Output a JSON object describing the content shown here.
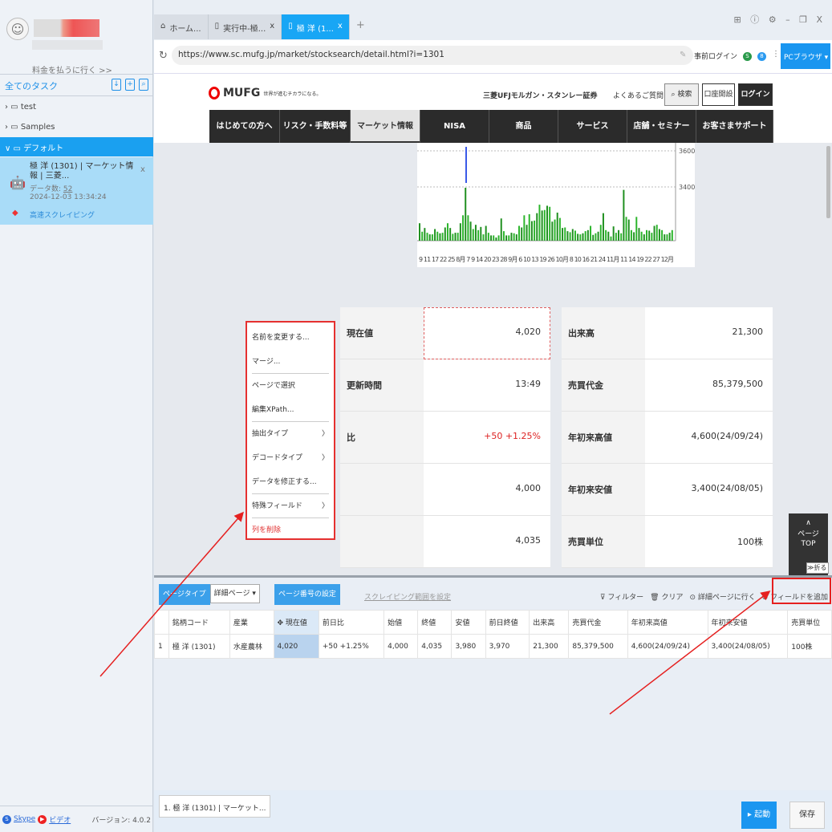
{
  "sidebar": {
    "pay_link": "料金を払うに行く >>",
    "tasks_title": "全てのタスク",
    "header_icons": [
      "import-icon",
      "add-task-icon",
      "search-task-icon"
    ],
    "folders": [
      {
        "label": "test"
      },
      {
        "label": "Samples"
      },
      {
        "label": "デフォルト"
      }
    ],
    "task": {
      "title": "極 洋 (1301) | マーケット情報 | 三菱...",
      "count_label": "データ数:",
      "count": "52",
      "datetime": "2024-12-03 13:34:24",
      "close": "x",
      "mode": "高速スクレイピング"
    },
    "footer": {
      "skype": "Skype",
      "video": "ビデオ",
      "version": "バージョン: 4.0.2"
    }
  },
  "tabs": [
    {
      "label": "ホーム..."
    },
    {
      "label": "実行中-極...",
      "close": "x"
    },
    {
      "label": "極 洋 (1...",
      "close": "x"
    }
  ],
  "tab_add": "+",
  "window_controls": "⊞ ⓘ ⚙ – ❐ X",
  "address": {
    "url": "https://www.sc.mufg.jp/market/stocksearch/detail.html?i=1301",
    "pre_login": "事前ログイン",
    "browser_mode": "PCブラウザ"
  },
  "site": {
    "logo": "MUFG",
    "tagline": "世界が進むチカラになる。",
    "company": "三菱UFJモルガン・スタンレー証券",
    "faq": "よくあるご質問",
    "search": "検索",
    "open_account": "口座開設",
    "login": "ログイン",
    "nav": [
      "はじめての方へ",
      "リスク・手数料等",
      "マーケット情報",
      "NISA",
      "商品",
      "サービス",
      "店舗・セミナー",
      "お客さまサポート"
    ],
    "chart": {
      "y_ticks": [
        "3600",
        "3400"
      ],
      "x_labels": "9 11 17 22 25   8月 7 9 14  20 23 28 9月 6 10 13 19  26 10月 8 10 16 21 24     11月 11 14 19 22 27 12月",
      "volume_relative": [
        0.33,
        0.17,
        0.24,
        0.15,
        0.12,
        0.12,
        0.22,
        0.17,
        0.14,
        0.15,
        0.25,
        0.33,
        0.24,
        0.13,
        0.15,
        0.15,
        0.33,
        0.48,
        1.0,
        0.48,
        0.36,
        0.22,
        0.3,
        0.2,
        0.26,
        0.12,
        0.28,
        0.15,
        0.1,
        0.1,
        0.06,
        0.1,
        0.42,
        0.18,
        0.1,
        0.1,
        0.15,
        0.14,
        0.12,
        0.28,
        0.25,
        0.48,
        0.3,
        0.5,
        0.37,
        0.38,
        0.52,
        0.68,
        0.57,
        0.58,
        0.66,
        0.64,
        0.36,
        0.4,
        0.53,
        0.43,
        0.24,
        0.25,
        0.18,
        0.16,
        0.22,
        0.19,
        0.13,
        0.12,
        0.14,
        0.18,
        0.2,
        0.28,
        0.11,
        0.14,
        0.17,
        0.3,
        0.52,
        0.2,
        0.17,
        0.08,
        0.27,
        0.15,
        0.2,
        0.14,
        0.96,
        0.45,
        0.4,
        0.2,
        0.16,
        0.45,
        0.24,
        0.17,
        0.12,
        0.2,
        0.19,
        0.15,
        0.28,
        0.3,
        0.22,
        0.2,
        0.12,
        0.12,
        0.15,
        0.2
      ]
    },
    "quote_left": [
      {
        "label": "現在値",
        "value": "4,020"
      },
      {
        "label": "更新時間",
        "value": "13:49"
      },
      {
        "label": "比",
        "value": "+50 +1.25%"
      },
      {
        "label": "",
        "value": "4,000"
      },
      {
        "label": "",
        "value": "4,035"
      }
    ],
    "quote_right": [
      {
        "label": "出来高",
        "value": "21,300"
      },
      {
        "label": "売買代金",
        "value": "85,379,500"
      },
      {
        "label": "年初来高値",
        "value": "4,600(24/09/24)"
      },
      {
        "label": "年初来安値",
        "value": "3,400(24/08/05)"
      },
      {
        "label": "売買単位",
        "value": "100株"
      }
    ],
    "page_top": "ページTOP",
    "fold": "≫折る"
  },
  "context_menu": [
    "名前を変更する...",
    "マージ...",
    "ページで選択",
    "編集XPath...",
    "抽出タイプ",
    "デコードタイプ",
    "データを修正する...",
    "特殊フィールド",
    "列を削除"
  ],
  "panel": {
    "page_type_label": "ページタイプ",
    "page_type_value": "詳細ページ",
    "page_number": "ページ番号の設定",
    "scrape_range": "スクレイピング範囲を設定",
    "filter": "フィルター",
    "clear": "クリア",
    "goto_detail": "詳細ページに行く",
    "add_field": "フィールドを追加",
    "columns": [
      "",
      "銘柄コード",
      "産業",
      "現在値",
      "前日比",
      "始値",
      "終値",
      "安値",
      "前日終値",
      "出来高",
      "売買代金",
      "年初来高値",
      "年初来安値",
      "売買単位"
    ],
    "rows": [
      [
        "1",
        "極 洋 (1301)",
        "水産農林",
        "4,020",
        "+50 +1.25%",
        "4,000",
        "4,035",
        "3,980",
        "3,970",
        "21,300",
        "85,379,500",
        "4,600(24/09/24)",
        "3,400(24/08/05)",
        "100株"
      ]
    ]
  },
  "bottom": {
    "task_chip": "1. 極 洋 (1301) | マーケット...",
    "run": "起動",
    "save": "保存"
  },
  "colors": {
    "accent": "#1aa0f0",
    "annotation": "#e52020",
    "volume_bar": "#1f8f1f"
  }
}
